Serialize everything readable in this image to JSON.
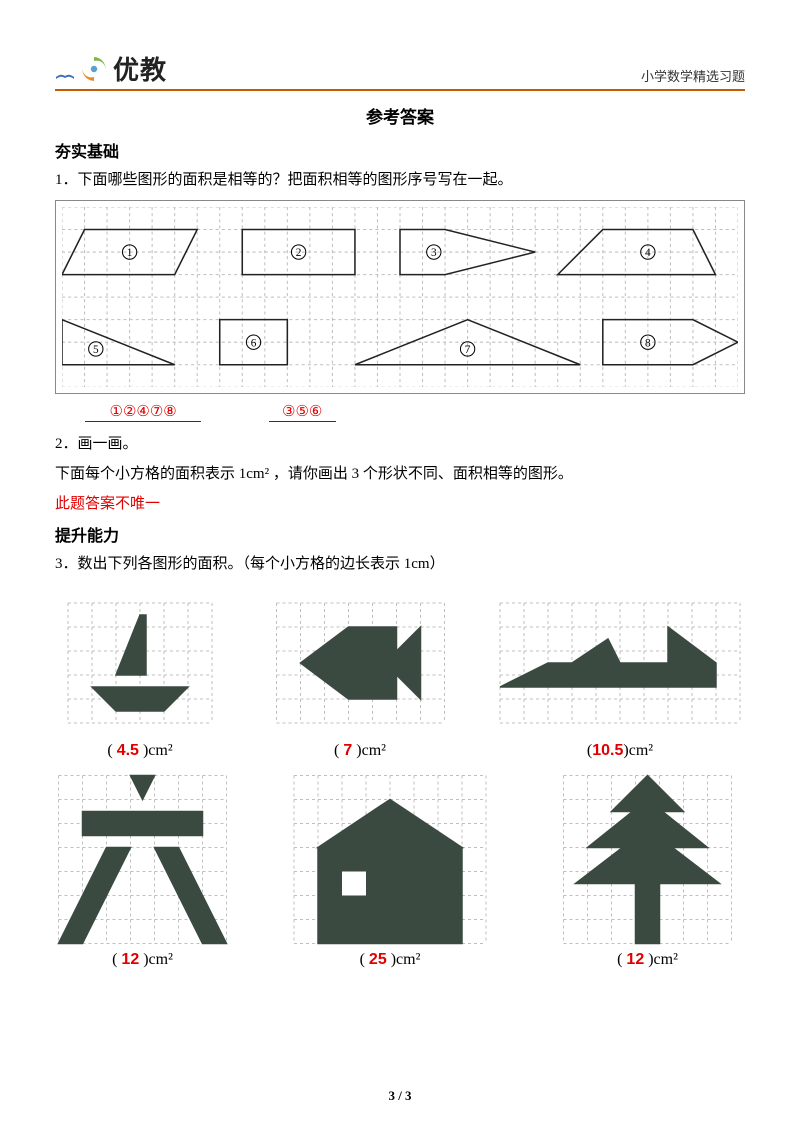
{
  "header": {
    "brand": "优教",
    "right_text": "小学数学精选习题"
  },
  "title": "参考答案",
  "s1": {
    "heading": "夯实基础",
    "q1_text": "1．下面哪些图形的面积是相等的？把面积相等的图形序号写在一起。",
    "answer_groups": [
      "①②④⑦⑧",
      "③⑤⑥"
    ],
    "q2_text": "2．画一画。",
    "q2_sub": "下面每个小方格的面积表示 1cm² ，请你画出 3 个形状不同、面积相等的图形。",
    "q2_note": "此题答案不唯一"
  },
  "s2": {
    "heading": "提升能力",
    "q3_text": "3．数出下列各图形的面积。（每个小方格的边长表示 1cm）",
    "answers": [
      "4.5",
      "7",
      "10.5",
      "12",
      "25",
      "12"
    ],
    "unit": "cm²"
  },
  "footer": "3 / 3",
  "style": {
    "grid_stroke": "#bfbfbf",
    "grid_dash": "3,3",
    "shape_stroke": "#222",
    "shape_fill_dark": "#3a4a40",
    "circle_label_color": "#000",
    "figure_grid": {
      "cols": 30,
      "rows": 8,
      "cell": 22
    },
    "small_grid_cell": 24,
    "logo_colors": {
      "blue": "#5aa0d0",
      "green": "#7db54a",
      "orange": "#e88a2a",
      "book": "#3c70b6"
    }
  }
}
